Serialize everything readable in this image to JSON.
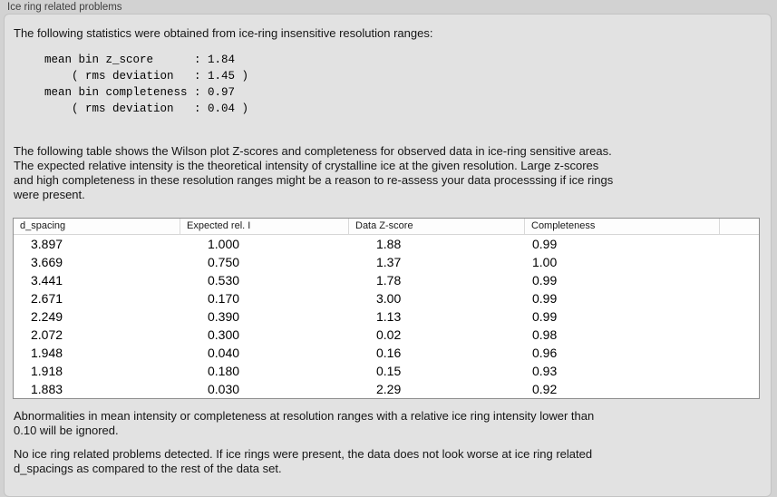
{
  "panel": {
    "title": "Ice ring related problems"
  },
  "stats": {
    "intro": "The following statistics were obtained from ice-ring insensitive resolution ranges:",
    "block": "mean bin z_score      : 1.84\n    ( rms deviation   : 1.45 )\nmean bin completeness : 0.97\n    ( rms deviation   : 0.04 )",
    "mean_bin_z_score": "1.84",
    "z_score_rms_deviation": "1.45",
    "mean_bin_completeness": "0.97",
    "completeness_rms_deviation": "0.04"
  },
  "table_section": {
    "description": "The following table shows the Wilson plot Z-scores and completeness for observed data in ice-ring sensitive areas.\nThe expected relative intensity is the theoretical intensity of crystalline ice at the given resolution. Large z-scores\nand high completeness in these resolution ranges might be a reason to re-assess your data processsing if ice rings\nwere present."
  },
  "table": {
    "columns": [
      "d_spacing",
      "Expected rel. I",
      "Data Z-score",
      "Completeness"
    ],
    "rows": [
      [
        "3.897",
        "1.000",
        "1.88",
        "0.99"
      ],
      [
        "3.669",
        "0.750",
        "1.37",
        "1.00"
      ],
      [
        "3.441",
        "0.530",
        "1.78",
        "0.99"
      ],
      [
        "2.671",
        "0.170",
        "3.00",
        "0.99"
      ],
      [
        "2.249",
        "0.390",
        "1.13",
        "0.99"
      ],
      [
        "2.072",
        "0.300",
        "0.02",
        "0.98"
      ],
      [
        "1.948",
        "0.040",
        "0.16",
        "0.96"
      ],
      [
        "1.918",
        "0.180",
        "0.15",
        "0.93"
      ],
      [
        "1.883",
        "0.030",
        "2.29",
        "0.92"
      ]
    ]
  },
  "notes": {
    "ignore": "Abnormalities in mean intensity or completeness at resolution ranges with a relative ice ring intensity lower than\n0.10 will be ignored.",
    "conclusion": "No ice ring related problems detected. If ice rings were present, the data does not look worse at ice ring related\nd_spacings as compared to the rest of the data set."
  }
}
